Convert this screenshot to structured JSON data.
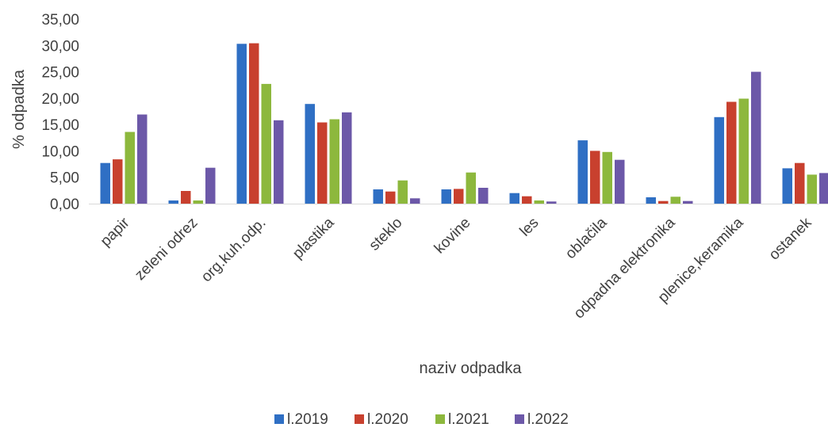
{
  "chart_data": {
    "type": "bar",
    "title": "",
    "xlabel": "naziv odpadka",
    "ylabel": "% odpadka",
    "ylim": [
      0,
      35
    ],
    "yticks": [
      "0,00",
      "5,00",
      "10,00",
      "15,00",
      "20,00",
      "25,00",
      "30,00",
      "35,00"
    ],
    "grid": false,
    "legend_position": "bottom",
    "categories": [
      "papir",
      "zeleni odrez",
      "org.kuh.odp.",
      "plastika",
      "steklo",
      "kovine",
      "les",
      "oblačila",
      "odpadna elektronika",
      "plenice,keramika",
      "ostanek"
    ],
    "series": [
      {
        "name": "l.2019",
        "color": "#2f6fc4",
        "values": [
          7.7,
          0.6,
          30.3,
          18.9,
          2.7,
          2.7,
          2.0,
          12.0,
          1.2,
          16.4,
          6.7
        ]
      },
      {
        "name": "l.2020",
        "color": "#c8402e",
        "values": [
          8.4,
          2.4,
          30.4,
          15.4,
          2.3,
          2.8,
          1.4,
          10.0,
          0.5,
          19.3,
          7.7
        ]
      },
      {
        "name": "l.2021",
        "color": "#8db83d",
        "values": [
          13.6,
          0.6,
          22.7,
          16.0,
          4.4,
          5.9,
          0.6,
          9.8,
          1.3,
          19.9,
          5.5
        ]
      },
      {
        "name": "l.2022",
        "color": "#6c58a8",
        "values": [
          16.9,
          6.8,
          15.8,
          17.3,
          1.0,
          3.0,
          0.4,
          8.3,
          0.5,
          25.0,
          5.8
        ]
      }
    ]
  }
}
